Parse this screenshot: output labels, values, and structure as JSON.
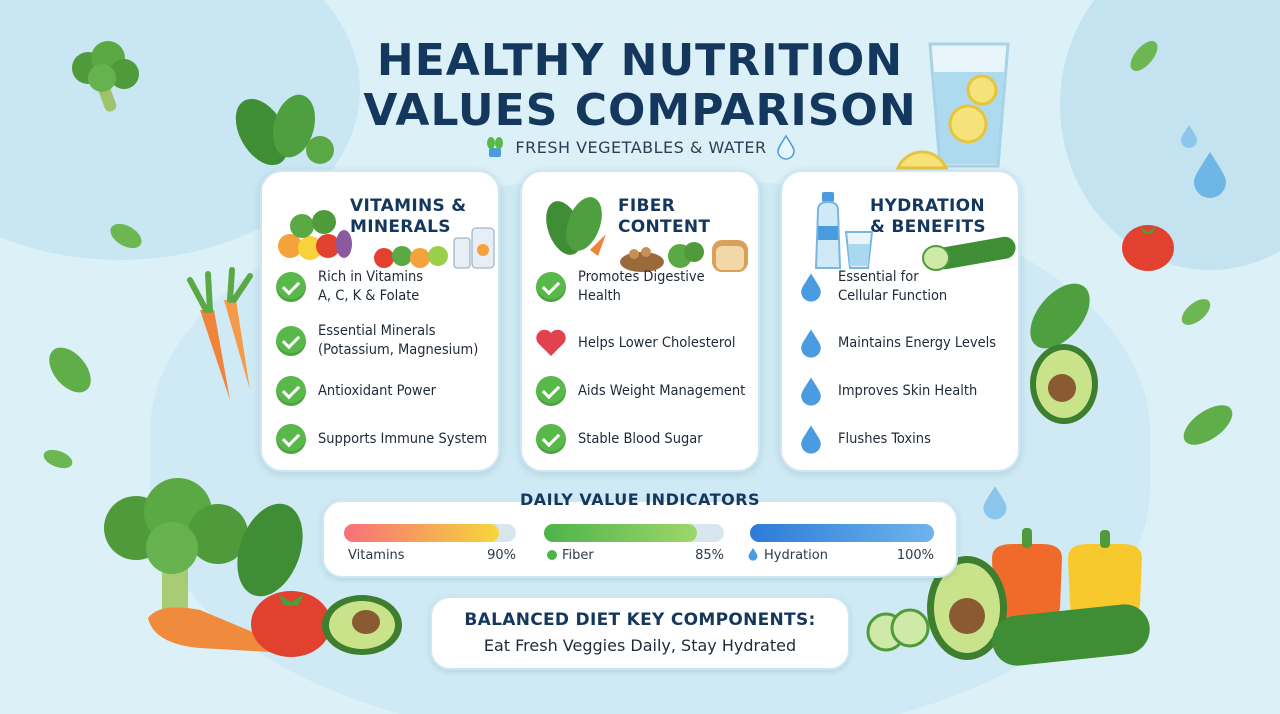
{
  "header": {
    "title_line1": "HEALTHY NUTRITION",
    "title_line2": "VALUES COMPARISON",
    "subtitle": "FRESH VEGETABLES & WATER"
  },
  "cards": [
    {
      "title_line1": "VITAMINS &",
      "title_line2": "MINERALS",
      "items": [
        {
          "line1": "Rich in Vitamins",
          "line2": "A, C, K & Folate",
          "icon": "check-icon"
        },
        {
          "line1": "Essential Minerals",
          "line2": "(Potassium, Magnesium)",
          "icon": "check-icon"
        },
        {
          "line1": "Antioxidant Power",
          "line2": "",
          "icon": "check-icon"
        },
        {
          "line1": "Supports Immune System",
          "line2": "",
          "icon": "check-icon"
        }
      ]
    },
    {
      "title_line1": "FIBER",
      "title_line2": "CONTENT",
      "items": [
        {
          "line1": "Promotes Digestive",
          "line2": "Health",
          "icon": "check-icon"
        },
        {
          "line1": "Helps Lower Cholesterol",
          "line2": "",
          "icon": "heart-icon"
        },
        {
          "line1": "Aids Weight Management",
          "line2": "",
          "icon": "check-icon"
        },
        {
          "line1": "Stable Blood Sugar",
          "line2": "",
          "icon": "check-icon"
        }
      ]
    },
    {
      "title_line1": "HYDRATION",
      "title_line2": "& BENEFITS",
      "items": [
        {
          "line1": "Essential for",
          "line2": "Cellular Function",
          "icon": "water-drop-icon"
        },
        {
          "line1": "Maintains Energy Levels",
          "line2": "",
          "icon": "water-drop-icon"
        },
        {
          "line1": "Improves Skin Health",
          "line2": "",
          "icon": "water-drop-icon"
        },
        {
          "line1": "Flushes Toxins",
          "line2": "",
          "icon": "water-drop-icon"
        }
      ]
    }
  ],
  "daily_value": {
    "title": "DAILY VALUE INDICATORS",
    "bars": [
      {
        "label": "Vitamins",
        "value_text": "90%",
        "value": 90,
        "color_start": "#f7707a",
        "color_end": "#f6d63a"
      },
      {
        "label": "Fiber",
        "value_text": "85%",
        "value": 85,
        "color_start": "#4db34a",
        "color_end": "#9ed76a"
      },
      {
        "label": "Hydration",
        "value_text": "100%",
        "value": 100,
        "color_start": "#2c7bd6",
        "color_end": "#6fb4ee"
      }
    ]
  },
  "balance": {
    "title": "BALANCED DIET KEY COMPONENTS:",
    "subtitle": "Eat Fresh Veggies Daily, Stay Hydrated"
  },
  "colors": {
    "heading": "#14375e",
    "check": "#58b94a",
    "heart": "#e2424d",
    "drop": "#4a9be0",
    "background": "#dcf0f7"
  }
}
